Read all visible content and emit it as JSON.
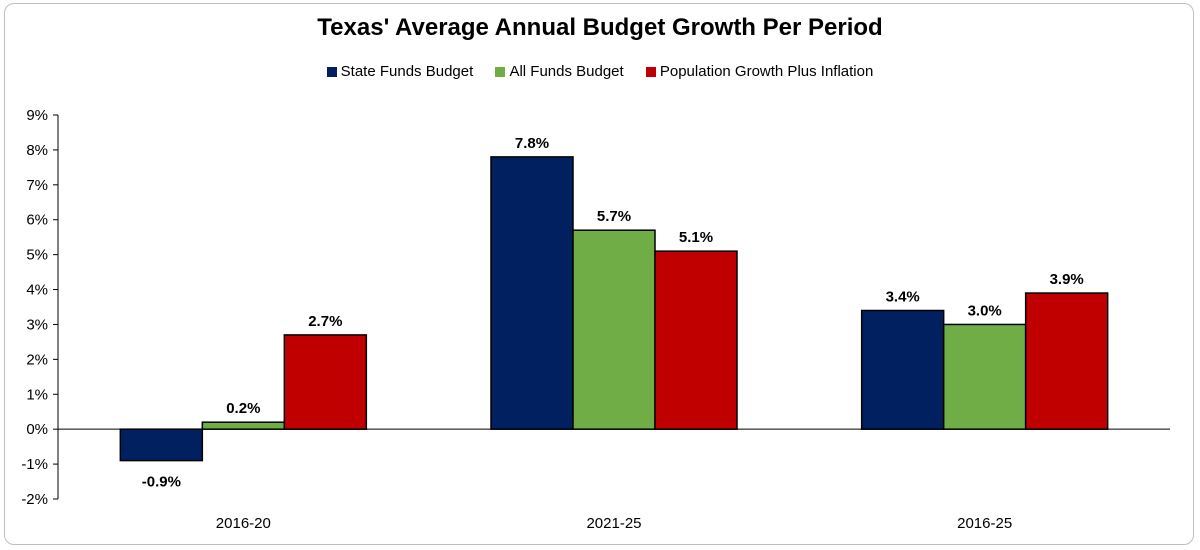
{
  "chart_data": {
    "type": "bar",
    "title": "Texas' Average Annual Budget Growth Per Period",
    "categories": [
      "2016-20",
      "2021-25",
      "2016-25"
    ],
    "series": [
      {
        "name": "State Funds Budget",
        "color": "#002060",
        "values": [
          -0.9,
          7.8,
          3.4
        ],
        "labels": [
          "-0.9%",
          "7.8%",
          "3.4%"
        ]
      },
      {
        "name": "All Funds Budget",
        "color": "#70ad47",
        "values": [
          0.2,
          5.7,
          3.0
        ],
        "labels": [
          "0.2%",
          "5.7%",
          "3.0%"
        ]
      },
      {
        "name": "Population Growth Plus Inflation",
        "color": "#c00000",
        "values": [
          2.7,
          5.1,
          3.9
        ],
        "labels": [
          "2.7%",
          "5.1%",
          "3.9%"
        ]
      }
    ],
    "ylim": [
      -2,
      9
    ],
    "yticks": [
      -2,
      -1,
      0,
      1,
      2,
      3,
      4,
      5,
      6,
      7,
      8,
      9
    ],
    "ytick_labels": [
      "-2%",
      "-1%",
      "0%",
      "1%",
      "2%",
      "3%",
      "4%",
      "5%",
      "6%",
      "7%",
      "8%",
      "9%"
    ],
    "xlabel": "",
    "ylabel": "",
    "grid": false,
    "legend_position": "top"
  }
}
